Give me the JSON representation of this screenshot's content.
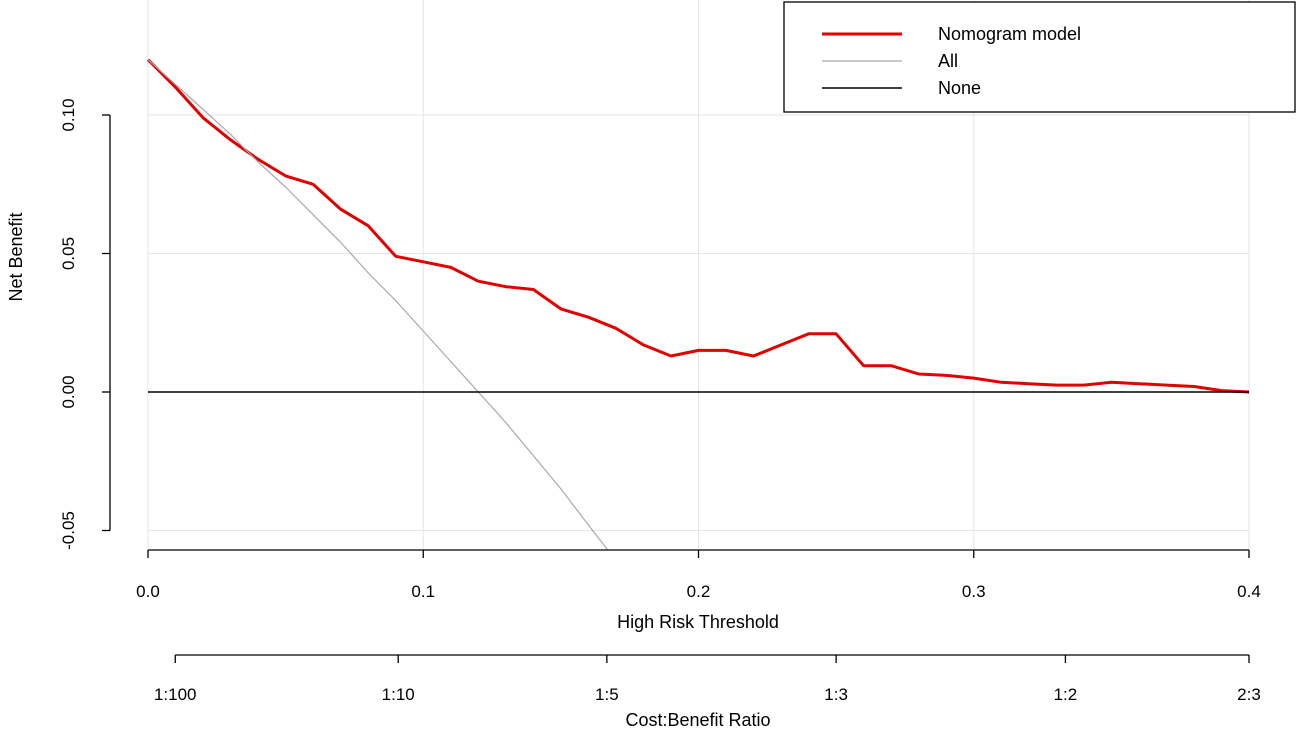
{
  "chart_data": {
    "type": "line",
    "title": "",
    "xlabel": "High Risk Threshold",
    "ylabel": "Net Benefit",
    "secondary_xlabel": "Cost:Benefit Ratio",
    "xlim": [
      0,
      0.4
    ],
    "ylim": [
      -0.05,
      0.12
    ],
    "grid": true,
    "legend_position": "top-right",
    "x_ticks": [
      {
        "value": 0.0,
        "label": "0.0"
      },
      {
        "value": 0.1,
        "label": "0.1"
      },
      {
        "value": 0.2,
        "label": "0.2"
      },
      {
        "value": 0.3,
        "label": "0.3"
      },
      {
        "value": 0.4,
        "label": "0.4"
      }
    ],
    "y_ticks": [
      {
        "value": -0.05,
        "label": "-0.05"
      },
      {
        "value": 0.0,
        "label": "0.00"
      },
      {
        "value": 0.05,
        "label": "0.05"
      },
      {
        "value": 0.1,
        "label": "0.10"
      }
    ],
    "secondary_ticks": [
      {
        "threshold": 0.0099,
        "label": "1:100"
      },
      {
        "threshold": 0.0909,
        "label": "1:10"
      },
      {
        "threshold": 0.1667,
        "label": "1:5"
      },
      {
        "threshold": 0.25,
        "label": "1:3"
      },
      {
        "threshold": 0.3333,
        "label": "1:2"
      },
      {
        "threshold": 0.4,
        "label": "2:3"
      }
    ],
    "series": [
      {
        "name": "Nomogram model",
        "color": "#e00000",
        "points": [
          [
            0.0,
            0.12
          ],
          [
            0.01,
            0.11
          ],
          [
            0.02,
            0.099
          ],
          [
            0.03,
            0.091
          ],
          [
            0.04,
            0.084
          ],
          [
            0.05,
            0.078
          ],
          [
            0.06,
            0.075
          ],
          [
            0.07,
            0.066
          ],
          [
            0.08,
            0.06
          ],
          [
            0.09,
            0.049
          ],
          [
            0.1,
            0.047
          ],
          [
            0.11,
            0.045
          ],
          [
            0.12,
            0.04
          ],
          [
            0.13,
            0.038
          ],
          [
            0.14,
            0.037
          ],
          [
            0.15,
            0.03
          ],
          [
            0.16,
            0.027
          ],
          [
            0.17,
            0.023
          ],
          [
            0.18,
            0.017
          ],
          [
            0.19,
            0.013
          ],
          [
            0.2,
            0.015
          ],
          [
            0.21,
            0.015
          ],
          [
            0.22,
            0.013
          ],
          [
            0.23,
            0.017
          ],
          [
            0.24,
            0.021
          ],
          [
            0.25,
            0.021
          ],
          [
            0.26,
            0.0095
          ],
          [
            0.27,
            0.0095
          ],
          [
            0.28,
            0.0065
          ],
          [
            0.29,
            0.006
          ],
          [
            0.3,
            0.005
          ],
          [
            0.31,
            0.0035
          ],
          [
            0.32,
            0.003
          ],
          [
            0.33,
            0.0025
          ],
          [
            0.34,
            0.0025
          ],
          [
            0.35,
            0.0035
          ],
          [
            0.36,
            0.003
          ],
          [
            0.37,
            0.0025
          ],
          [
            0.38,
            0.002
          ],
          [
            0.39,
            0.0005
          ],
          [
            0.4,
            0.0
          ]
        ]
      },
      {
        "name": "All",
        "color": "#a9a9a9",
        "points": [
          [
            0.0,
            0.12
          ],
          [
            0.01,
            0.111
          ],
          [
            0.02,
            0.102
          ],
          [
            0.03,
            0.093
          ],
          [
            0.04,
            0.083
          ],
          [
            0.05,
            0.074
          ],
          [
            0.06,
            0.064
          ],
          [
            0.07,
            0.054
          ],
          [
            0.08,
            0.043
          ],
          [
            0.09,
            0.033
          ],
          [
            0.1,
            0.022
          ],
          [
            0.11,
            0.011
          ],
          [
            0.12,
            0.0
          ],
          [
            0.13,
            -0.011
          ],
          [
            0.14,
            -0.023
          ],
          [
            0.15,
            -0.035
          ],
          [
            0.16,
            -0.048
          ],
          [
            0.167,
            -0.057
          ]
        ]
      },
      {
        "name": "None",
        "color": "#000000",
        "points": [
          [
            0.0,
            0.0
          ],
          [
            0.4,
            0.0
          ]
        ]
      }
    ]
  }
}
